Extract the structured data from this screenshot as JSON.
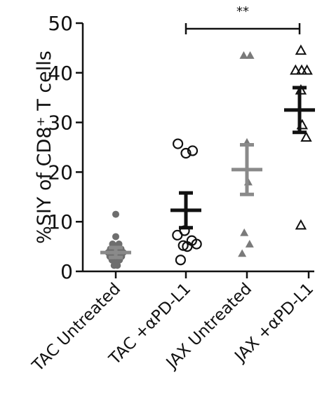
{
  "chart_data": {
    "type": "scatter",
    "ylabel": "%SIY of CD8⁺ T cells",
    "ylim": [
      0,
      50
    ],
    "yticks": [
      0,
      10,
      20,
      30,
      40,
      50
    ],
    "categories": [
      "TAC Untreated",
      "TAC +αPD-L1",
      "JAX Untreated",
      "JAX +αPD-L1"
    ],
    "significance": {
      "label": "**",
      "from": "TAC +αPD-L1",
      "to": "JAX +αPD-L1"
    },
    "groups": [
      {
        "name": "TAC Untreated",
        "marker": "filled-circle",
        "color": "#6e6e6e",
        "mean": 3.8,
        "sem_low": 2.8,
        "sem_high": 4.8,
        "points": [
          [
            0.0,
            11.5
          ],
          [
            0.0,
            7.0
          ],
          [
            -0.12,
            5.5
          ],
          [
            0.12,
            5.5
          ],
          [
            -0.2,
            4.5
          ],
          [
            0.0,
            4.6
          ],
          [
            0.2,
            4.5
          ],
          [
            -0.28,
            3.8
          ],
          [
            -0.1,
            3.7
          ],
          [
            0.1,
            3.7
          ],
          [
            0.28,
            3.8
          ],
          [
            -0.22,
            3.0
          ],
          [
            0.0,
            3.0
          ],
          [
            0.22,
            3.0
          ],
          [
            -0.14,
            2.3
          ],
          [
            0.14,
            2.3
          ],
          [
            0.0,
            1.8
          ],
          [
            -0.06,
            1.2
          ],
          [
            0.06,
            1.2
          ]
        ]
      },
      {
        "name": "TAC +αPD-L1",
        "marker": "open-circle",
        "color": "#111111",
        "mean": 12.3,
        "sem_low": 8.8,
        "sem_high": 15.8,
        "points": [
          [
            -0.3,
            25.7
          ],
          [
            0.0,
            23.8
          ],
          [
            0.25,
            24.3
          ],
          [
            -0.32,
            7.3
          ],
          [
            -0.05,
            8.2
          ],
          [
            0.22,
            6.2
          ],
          [
            0.4,
            5.5
          ],
          [
            -0.1,
            5.2
          ],
          [
            0.05,
            5.0
          ],
          [
            -0.2,
            2.3
          ]
        ]
      },
      {
        "name": "JAX Untreated",
        "marker": "filled-triangle",
        "color": "#7a7a7a",
        "mean": 20.5,
        "sem_low": 15.5,
        "sem_high": 25.5,
        "points": [
          [
            -0.12,
            43.5
          ],
          [
            0.12,
            43.5
          ],
          [
            -0.1,
            7.8
          ],
          [
            0.1,
            5.5
          ],
          [
            -0.18,
            3.6
          ],
          [
            0.0,
            26.0
          ],
          [
            0.05,
            18.0
          ]
        ]
      },
      {
        "name": "JAX +αPD-L1",
        "marker": "open-triangle",
        "color": "#111111",
        "mean": 32.5,
        "sem_low": 28.0,
        "sem_high": 37.0,
        "points": [
          [
            0.05,
            44.5
          ],
          [
            -0.15,
            40.5
          ],
          [
            0.08,
            40.5
          ],
          [
            0.28,
            40.5
          ],
          [
            0.05,
            36.5
          ],
          [
            0.1,
            29.5
          ],
          [
            0.25,
            27.0
          ],
          [
            0.05,
            9.3
          ]
        ]
      }
    ]
  }
}
